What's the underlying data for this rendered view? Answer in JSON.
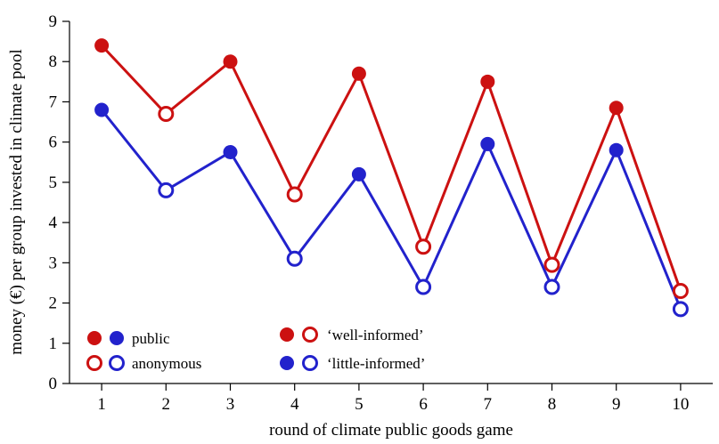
{
  "chart_data": {
    "type": "line",
    "title": "",
    "xlabel": "round of climate public goods game",
    "ylabel": "money (€) per group invested in climate pool",
    "x": [
      1,
      2,
      3,
      4,
      5,
      6,
      7,
      8,
      9,
      10
    ],
    "xlim": [
      0.5,
      10.5
    ],
    "ylim": [
      0,
      9
    ],
    "yticks": [
      0,
      1,
      2,
      3,
      4,
      5,
      6,
      7,
      8,
      9
    ],
    "grid": false,
    "series": [
      {
        "name": "'well-informed'",
        "color": "#cc1111",
        "values": [
          8.4,
          6.7,
          8.0,
          4.7,
          7.7,
          3.4,
          7.5,
          2.95,
          6.85,
          2.3
        ],
        "marker": [
          "public",
          "anonymous",
          "public",
          "anonymous",
          "public",
          "anonymous",
          "public",
          "anonymous",
          "public",
          "anonymous"
        ]
      },
      {
        "name": "'little-informed'",
        "color": "#2222cc",
        "values": [
          6.8,
          4.8,
          5.75,
          3.1,
          5.2,
          2.4,
          5.95,
          2.4,
          5.8,
          1.85
        ],
        "marker": [
          "public",
          "anonymous",
          "public",
          "anonymous",
          "public",
          "anonymous",
          "public",
          "anonymous",
          "public",
          "anonymous"
        ]
      }
    ],
    "legend": {
      "placement": "bottom-left",
      "entries": [
        {
          "label": "public",
          "style": "filled",
          "colors": [
            "#cc1111",
            "#2222cc"
          ]
        },
        {
          "label": "anonymous",
          "style": "open",
          "colors": [
            "#cc1111",
            "#2222cc"
          ]
        },
        {
          "label": "‘well-informed’",
          "style": "mixed",
          "colors": [
            "#cc1111",
            "#cc1111"
          ]
        },
        {
          "label": "‘little-informed’",
          "style": "mixed",
          "colors": [
            "#2222cc",
            "#2222cc"
          ]
        }
      ]
    }
  }
}
